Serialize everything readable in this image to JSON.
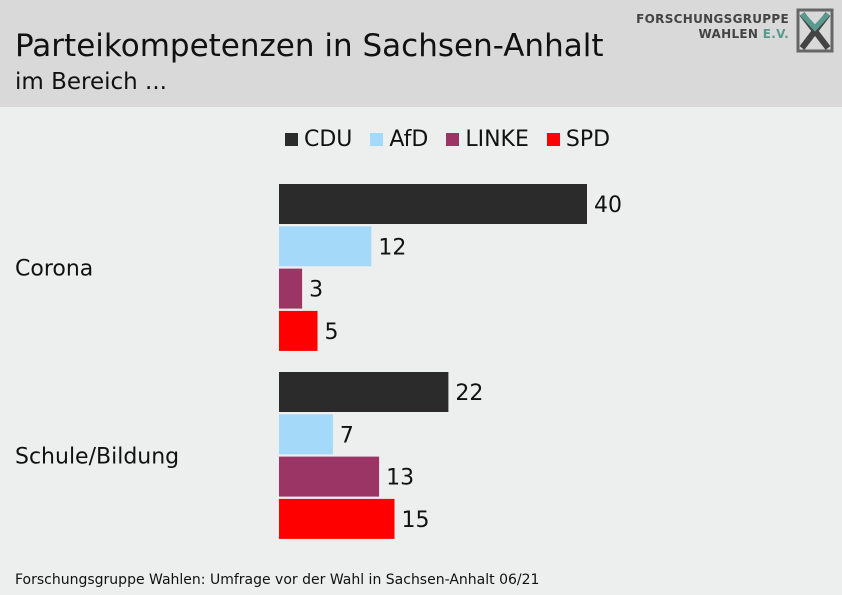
{
  "header": {
    "title": "Parteikompetenzen in Sachsen-Anhalt",
    "subtitle": "im Bereich ...",
    "logo_line1": "FORSCHUNGSGRUPPE",
    "logo_line2": "WAHLEN",
    "logo_ev": "E.V."
  },
  "footer": {
    "source": "Forschungsgruppe Wahlen: Umfrage vor der Wahl in Sachsen-Anhalt 06/21"
  },
  "chart_data": {
    "type": "bar",
    "orientation": "horizontal",
    "categories": [
      "Corona",
      "Schule/Bildung"
    ],
    "series": [
      {
        "name": "CDU",
        "color": "#2b2b2b",
        "values": [
          40,
          22
        ]
      },
      {
        "name": "AfD",
        "color": "#a5d9fa",
        "values": [
          12,
          7
        ]
      },
      {
        "name": "LINKE",
        "color": "#9b3566",
        "values": [
          3,
          13
        ]
      },
      {
        "name": "SPD",
        "color": "#ff0000",
        "values": [
          5,
          15
        ]
      }
    ],
    "legend_position": "top",
    "grid": false
  }
}
